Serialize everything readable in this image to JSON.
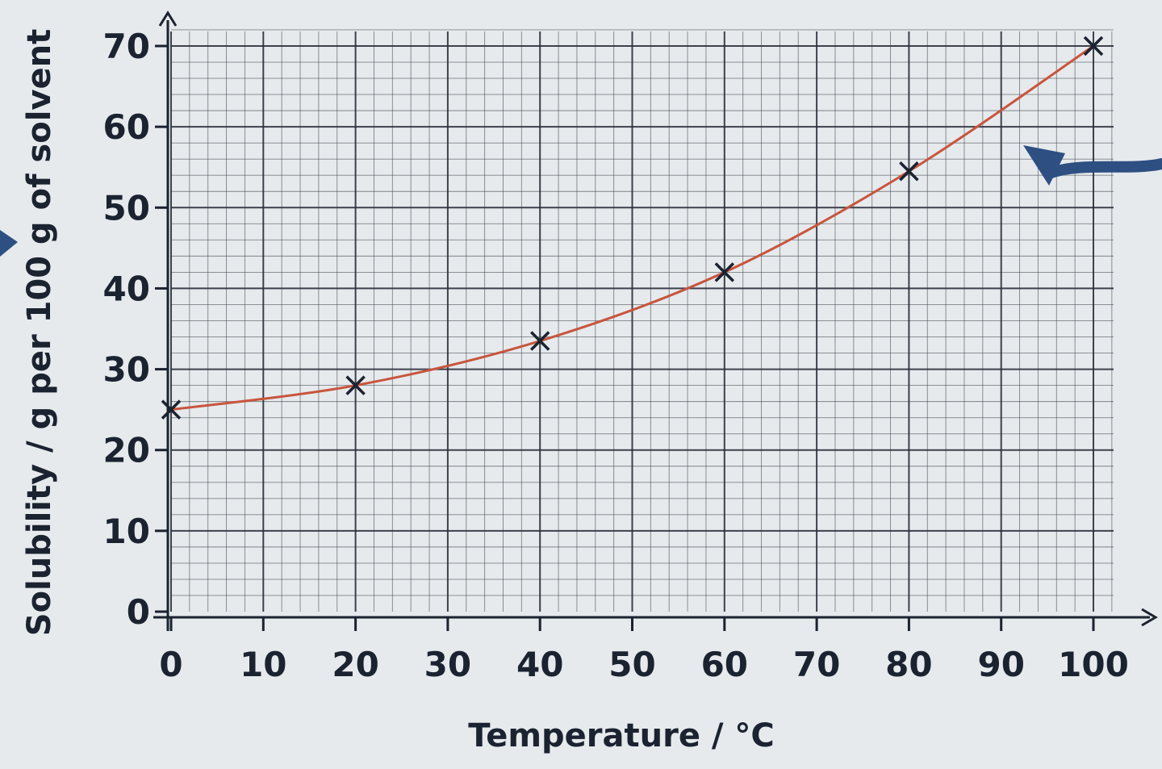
{
  "chart_data": {
    "type": "line",
    "xlabel": "Temperature / °C",
    "ylabel": "Solubility / g per 100 g of solvent",
    "xlim": [
      0,
      100
    ],
    "ylim": [
      0,
      70
    ],
    "x_ticks": [
      "0",
      "10",
      "20",
      "30",
      "40",
      "50",
      "60",
      "70",
      "80",
      "90",
      "100"
    ],
    "y_ticks": [
      "0",
      "10",
      "20",
      "30",
      "40",
      "50",
      "60",
      "70"
    ],
    "grid": true,
    "series": [
      {
        "points": [
          {
            "x": 0,
            "y": 25
          },
          {
            "x": 20,
            "y": 28
          },
          {
            "x": 40,
            "y": 33.5
          },
          {
            "x": 60,
            "y": 42
          },
          {
            "x": 80,
            "y": 54.5
          },
          {
            "x": 100,
            "y": 70
          }
        ],
        "marker": "x",
        "curve": "smooth best-fit line",
        "curve_color": "#c8553d"
      }
    ],
    "colors": {
      "background": "#e6eaec",
      "grid": "#2a2f3a",
      "axis": "#1b2230",
      "marker": "#1b2230",
      "curve": "#c8553d",
      "arrow": "#2d4f82"
    }
  }
}
